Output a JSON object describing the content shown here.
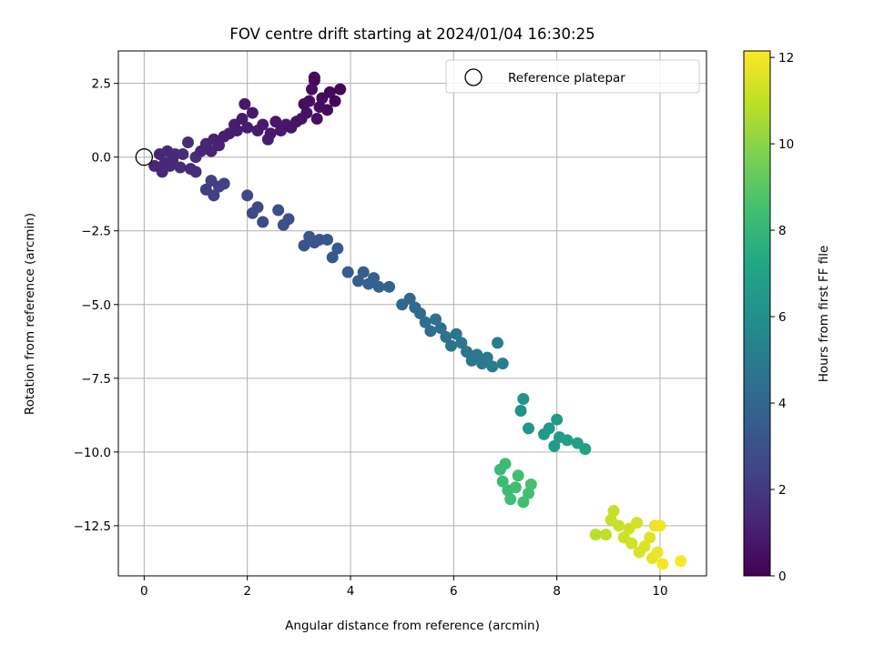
{
  "chart_data": {
    "type": "scatter",
    "title": "FOV centre drift starting at 2024/01/04 16:30:25",
    "xlabel": "Angular distance from reference (arcmin)",
    "ylabel": "Rotation from reference (arcmin)",
    "xlim": [
      -0.5,
      10.9
    ],
    "ylim": [
      -14.2,
      3.6
    ],
    "x_ticks": [
      "0",
      "2",
      "4",
      "6",
      "8",
      "10"
    ],
    "y_ticks": [
      "2.5",
      "0.0",
      "−2.5",
      "−5.0",
      "−7.5",
      "−10.0",
      "−12.5"
    ],
    "grid": true,
    "legend": {
      "placement": "top-right",
      "entries": [
        {
          "label": "Reference platepar",
          "marker": "open-circle"
        }
      ]
    },
    "reference_point": {
      "x": 0,
      "y": 0
    },
    "colorbar": {
      "label": "Hours from first FF file",
      "range": [
        0,
        12.15
      ],
      "ticks": [
        "0",
        "2",
        "4",
        "6",
        "8",
        "10",
        "12"
      ],
      "colormap": "viridis"
    },
    "points": [
      {
        "x": 0.2,
        "y": -0.3,
        "t": 1.3
      },
      {
        "x": 0.3,
        "y": 0.1,
        "t": 1.3
      },
      {
        "x": 0.35,
        "y": -0.5,
        "t": 1.35
      },
      {
        "x": 0.4,
        "y": -0.2,
        "t": 1.35
      },
      {
        "x": 0.45,
        "y": 0.2,
        "t": 1.4
      },
      {
        "x": 0.55,
        "y": -0.1,
        "t": 1.4
      },
      {
        "x": 0.6,
        "y": 0.1,
        "t": 1.45
      },
      {
        "x": 0.5,
        "y": -0.3,
        "t": 1.4
      },
      {
        "x": 0.7,
        "y": -0.35,
        "t": 1.45
      },
      {
        "x": 0.75,
        "y": 0.1,
        "t": 1.5
      },
      {
        "x": 0.85,
        "y": 0.5,
        "t": 1.55
      },
      {
        "x": 0.9,
        "y": -0.4,
        "t": 1.55
      },
      {
        "x": 1.0,
        "y": -0.5,
        "t": 1.6
      },
      {
        "x": 1.0,
        "y": 0.0,
        "t": 1.6
      },
      {
        "x": 1.1,
        "y": 0.2,
        "t": 1.3
      },
      {
        "x": 1.2,
        "y": 0.45,
        "t": 1.25
      },
      {
        "x": 1.3,
        "y": 0.2,
        "t": 1.2
      },
      {
        "x": 1.35,
        "y": 0.6,
        "t": 1.1
      },
      {
        "x": 1.45,
        "y": 0.4,
        "t": 1.1
      },
      {
        "x": 1.55,
        "y": 0.7,
        "t": 1.05
      },
      {
        "x": 1.65,
        "y": 0.8,
        "t": 1.0
      },
      {
        "x": 1.75,
        "y": 1.1,
        "t": 1.0
      },
      {
        "x": 1.8,
        "y": 0.9,
        "t": 0.95
      },
      {
        "x": 1.9,
        "y": 1.3,
        "t": 0.9
      },
      {
        "x": 1.95,
        "y": 1.8,
        "t": 0.85
      },
      {
        "x": 2.0,
        "y": 1.0,
        "t": 0.95
      },
      {
        "x": 2.1,
        "y": 1.5,
        "t": 0.8
      },
      {
        "x": 2.2,
        "y": 0.9,
        "t": 0.95
      },
      {
        "x": 2.3,
        "y": 1.1,
        "t": 0.9
      },
      {
        "x": 2.4,
        "y": 0.6,
        "t": 1.0
      },
      {
        "x": 2.45,
        "y": 0.8,
        "t": 0.85
      },
      {
        "x": 2.55,
        "y": 1.2,
        "t": 0.8
      },
      {
        "x": 2.65,
        "y": 0.9,
        "t": 0.85
      },
      {
        "x": 2.75,
        "y": 1.1,
        "t": 0.8
      },
      {
        "x": 2.85,
        "y": 1.0,
        "t": 0.75
      },
      {
        "x": 2.95,
        "y": 1.2,
        "t": 0.7
      },
      {
        "x": 3.05,
        "y": 1.3,
        "t": 0.6
      },
      {
        "x": 3.15,
        "y": 1.5,
        "t": 0.55
      },
      {
        "x": 3.2,
        "y": 1.9,
        "t": 0.5
      },
      {
        "x": 3.25,
        "y": 2.3,
        "t": 0.45
      },
      {
        "x": 3.3,
        "y": 2.6,
        "t": 0.35
      },
      {
        "x": 3.35,
        "y": 1.3,
        "t": 0.5
      },
      {
        "x": 3.4,
        "y": 1.7,
        "t": 0.4
      },
      {
        "x": 3.45,
        "y": 2.0,
        "t": 0.35
      },
      {
        "x": 3.55,
        "y": 1.6,
        "t": 0.3
      },
      {
        "x": 3.6,
        "y": 2.2,
        "t": 0.25
      },
      {
        "x": 3.7,
        "y": 1.9,
        "t": 0.2
      },
      {
        "x": 3.8,
        "y": 2.3,
        "t": 0.15
      },
      {
        "x": 3.3,
        "y": 2.7,
        "t": 0.2
      },
      {
        "x": 3.1,
        "y": 1.8,
        "t": 0.45
      },
      {
        "x": 1.2,
        "y": -1.1,
        "t": 2.2
      },
      {
        "x": 1.3,
        "y": -0.8,
        "t": 2.25
      },
      {
        "x": 1.35,
        "y": -1.3,
        "t": 2.25
      },
      {
        "x": 1.45,
        "y": -1.0,
        "t": 2.3
      },
      {
        "x": 1.55,
        "y": -0.9,
        "t": 2.3
      },
      {
        "x": 2.0,
        "y": -1.3,
        "t": 2.6
      },
      {
        "x": 2.1,
        "y": -1.9,
        "t": 2.7
      },
      {
        "x": 2.2,
        "y": -1.7,
        "t": 2.7
      },
      {
        "x": 2.3,
        "y": -2.2,
        "t": 2.75
      },
      {
        "x": 2.6,
        "y": -1.8,
        "t": 2.9
      },
      {
        "x": 2.7,
        "y": -2.3,
        "t": 2.95
      },
      {
        "x": 2.8,
        "y": -2.1,
        "t": 2.95
      },
      {
        "x": 3.1,
        "y": -3.0,
        "t": 3.15
      },
      {
        "x": 3.2,
        "y": -2.7,
        "t": 3.2
      },
      {
        "x": 3.3,
        "y": -2.9,
        "t": 3.2
      },
      {
        "x": 3.4,
        "y": -2.8,
        "t": 3.25
      },
      {
        "x": 3.55,
        "y": -2.8,
        "t": 3.3
      },
      {
        "x": 3.65,
        "y": -3.4,
        "t": 3.35
      },
      {
        "x": 3.75,
        "y": -3.1,
        "t": 3.4
      },
      {
        "x": 3.95,
        "y": -3.9,
        "t": 3.55
      },
      {
        "x": 4.15,
        "y": -4.2,
        "t": 3.65
      },
      {
        "x": 4.25,
        "y": -3.9,
        "t": 3.7
      },
      {
        "x": 4.35,
        "y": -4.3,
        "t": 3.75
      },
      {
        "x": 4.45,
        "y": -4.1,
        "t": 3.8
      },
      {
        "x": 4.55,
        "y": -4.4,
        "t": 3.85
      },
      {
        "x": 4.75,
        "y": -4.4,
        "t": 3.95
      },
      {
        "x": 5.0,
        "y": -5.0,
        "t": 4.1
      },
      {
        "x": 5.15,
        "y": -4.8,
        "t": 4.15
      },
      {
        "x": 5.25,
        "y": -5.1,
        "t": 4.2
      },
      {
        "x": 5.35,
        "y": -5.3,
        "t": 4.25
      },
      {
        "x": 5.45,
        "y": -5.6,
        "t": 4.35
      },
      {
        "x": 5.55,
        "y": -5.9,
        "t": 4.4
      },
      {
        "x": 5.65,
        "y": -5.5,
        "t": 4.45
      },
      {
        "x": 5.75,
        "y": -5.8,
        "t": 4.5
      },
      {
        "x": 5.85,
        "y": -6.1,
        "t": 4.55
      },
      {
        "x": 5.95,
        "y": -6.4,
        "t": 4.6
      },
      {
        "x": 6.05,
        "y": -6.0,
        "t": 4.65
      },
      {
        "x": 6.15,
        "y": -6.3,
        "t": 4.7
      },
      {
        "x": 6.25,
        "y": -6.6,
        "t": 4.75
      },
      {
        "x": 6.35,
        "y": -6.9,
        "t": 4.8
      },
      {
        "x": 6.45,
        "y": -6.7,
        "t": 4.85
      },
      {
        "x": 6.55,
        "y": -7.0,
        "t": 4.9
      },
      {
        "x": 6.65,
        "y": -6.8,
        "t": 4.95
      },
      {
        "x": 6.75,
        "y": -7.1,
        "t": 5.0
      },
      {
        "x": 6.85,
        "y": -6.3,
        "t": 5.1
      },
      {
        "x": 6.95,
        "y": -7.0,
        "t": 5.15
      },
      {
        "x": 7.3,
        "y": -8.6,
        "t": 6.2
      },
      {
        "x": 7.35,
        "y": -8.2,
        "t": 6.25
      },
      {
        "x": 7.45,
        "y": -9.2,
        "t": 6.35
      },
      {
        "x": 7.75,
        "y": -9.4,
        "t": 6.5
      },
      {
        "x": 7.85,
        "y": -9.2,
        "t": 6.55
      },
      {
        "x": 7.95,
        "y": -9.8,
        "t": 6.6
      },
      {
        "x": 8.05,
        "y": -9.5,
        "t": 6.65
      },
      {
        "x": 8.2,
        "y": -9.6,
        "t": 6.75
      },
      {
        "x": 8.4,
        "y": -9.7,
        "t": 6.85
      },
      {
        "x": 8.0,
        "y": -8.9,
        "t": 6.6
      },
      {
        "x": 8.55,
        "y": -9.9,
        "t": 6.9
      },
      {
        "x": 6.9,
        "y": -10.6,
        "t": 8.2
      },
      {
        "x": 6.95,
        "y": -11.0,
        "t": 8.25
      },
      {
        "x": 7.0,
        "y": -10.4,
        "t": 8.25
      },
      {
        "x": 7.05,
        "y": -11.3,
        "t": 8.3
      },
      {
        "x": 7.1,
        "y": -11.6,
        "t": 8.35
      },
      {
        "x": 7.2,
        "y": -11.2,
        "t": 8.4
      },
      {
        "x": 7.25,
        "y": -10.8,
        "t": 8.4
      },
      {
        "x": 7.35,
        "y": -11.7,
        "t": 8.45
      },
      {
        "x": 7.45,
        "y": -11.4,
        "t": 8.5
      },
      {
        "x": 7.5,
        "y": -11.1,
        "t": 8.55
      },
      {
        "x": 8.75,
        "y": -12.8,
        "t": 10.9
      },
      {
        "x": 8.95,
        "y": -12.8,
        "t": 11.0
      },
      {
        "x": 9.05,
        "y": -12.3,
        "t": 11.05
      },
      {
        "x": 9.1,
        "y": -12.0,
        "t": 11.1
      },
      {
        "x": 9.2,
        "y": -12.5,
        "t": 11.15
      },
      {
        "x": 9.3,
        "y": -12.9,
        "t": 11.2
      },
      {
        "x": 9.4,
        "y": -12.6,
        "t": 11.25
      },
      {
        "x": 9.45,
        "y": -13.1,
        "t": 11.3
      },
      {
        "x": 9.55,
        "y": -12.4,
        "t": 11.35
      },
      {
        "x": 9.6,
        "y": -13.4,
        "t": 11.45
      },
      {
        "x": 9.7,
        "y": -13.2,
        "t": 11.5
      },
      {
        "x": 9.8,
        "y": -12.9,
        "t": 11.6
      },
      {
        "x": 9.85,
        "y": -13.6,
        "t": 11.7
      },
      {
        "x": 9.9,
        "y": -12.5,
        "t": 11.75
      },
      {
        "x": 9.95,
        "y": -13.4,
        "t": 11.8
      },
      {
        "x": 10.0,
        "y": -12.5,
        "t": 11.9
      },
      {
        "x": 10.05,
        "y": -13.8,
        "t": 12.0
      },
      {
        "x": 10.4,
        "y": -13.7,
        "t": 12.1
      }
    ]
  }
}
